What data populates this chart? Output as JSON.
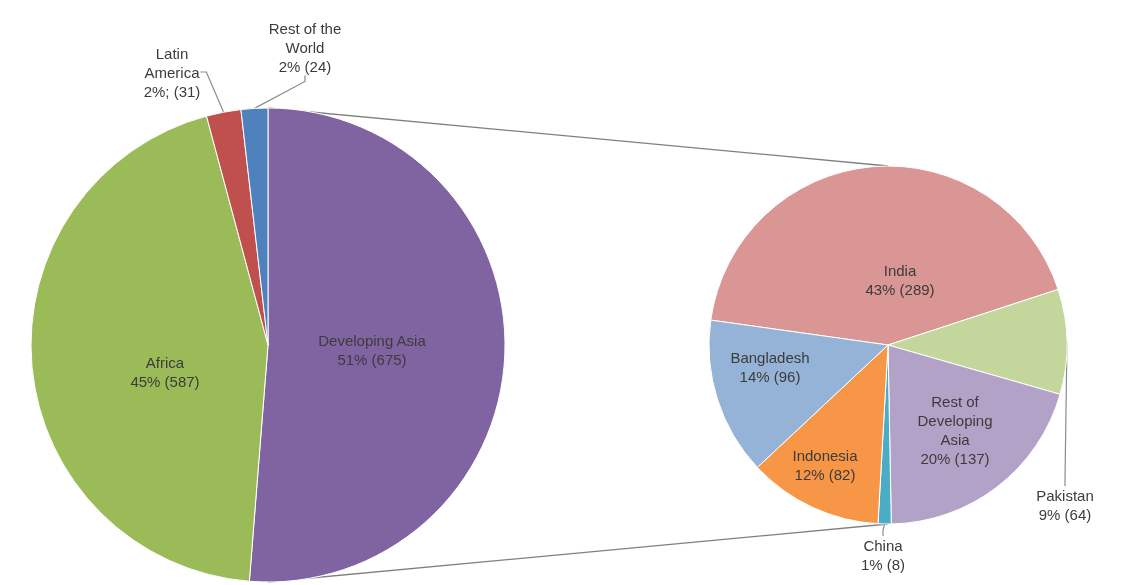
{
  "chart_data": [
    {
      "type": "pie",
      "categories": [
        "Developing Asia",
        "Africa",
        "Latin America",
        "Rest of the World"
      ],
      "values": [
        675,
        587,
        31,
        24
      ],
      "colors": [
        "#8064a2",
        "#9bbb59",
        "#c0504d",
        "#4f81bd"
      ],
      "value_labels": [
        "51% (675)",
        "45% (587)",
        "2%; (31)",
        "2% (24)"
      ]
    },
    {
      "type": "pie",
      "categories": [
        "India",
        "Pakistan",
        "Rest of Developing Asia",
        "China",
        "Indonesia",
        "Bangladesh"
      ],
      "values": [
        289,
        64,
        137,
        8,
        82,
        96
      ],
      "colors": [
        "#d99694",
        "#c3d69b",
        "#b3a2c7",
        "#4bacc6",
        "#f79646",
        "#95b3d7"
      ],
      "value_labels": [
        "43% (289)",
        "9% (64)",
        "20% (137)",
        "1% (8)",
        "12% (82)",
        "14% (96)"
      ]
    }
  ]
}
